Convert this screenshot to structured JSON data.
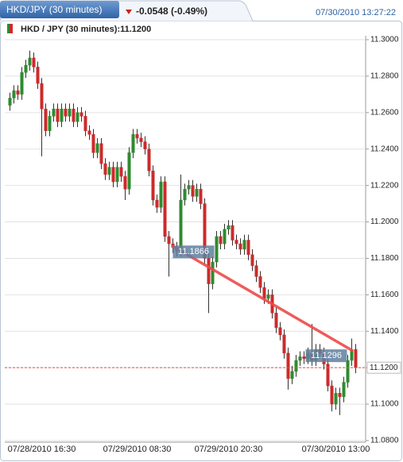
{
  "header": {
    "tab": "HKD/JPY (30 minutes)",
    "change": "-0.0548 (-0.49%)",
    "timestamp": "07/30/2010 13:27:22"
  },
  "chart_data": {
    "type": "candlestick",
    "legend": "HKD / JPY (30 minutes):11.1200",
    "up_color": "#2e8b2e",
    "down_color": "#cc2a2a",
    "categories": [
      null,
      null,
      null,
      null,
      null,
      null,
      null,
      null,
      "07/28/2010 16:30",
      null,
      null,
      null,
      null,
      null,
      null,
      null,
      null,
      null,
      null,
      null,
      null,
      null,
      null,
      null,
      null,
      null,
      null,
      null,
      null,
      null,
      null,
      null,
      "07/29/2010 08:30",
      null,
      null,
      null,
      null,
      null,
      null,
      null,
      null,
      null,
      null,
      null,
      null,
      null,
      null,
      null,
      null,
      null,
      null,
      null,
      null,
      null,
      null,
      "07/29/2010 20:30",
      null,
      null,
      null,
      null,
      null,
      null,
      null,
      null,
      null,
      null,
      null,
      null,
      null,
      null,
      null,
      null,
      null,
      null,
      null,
      null,
      null,
      null,
      null,
      null,
      null,
      null,
      "07/30/2010 13:00",
      null,
      null,
      null,
      null,
      null
    ],
    "open": [
      11.264,
      11.268,
      11.272,
      11.27,
      11.282,
      11.286,
      11.29,
      11.285,
      11.276,
      11.262,
      11.25,
      11.258,
      11.262,
      11.255,
      11.262,
      11.258,
      11.262,
      11.255,
      11.26,
      11.258,
      11.25,
      11.248,
      11.238,
      11.243,
      11.232,
      11.226,
      11.23,
      11.222,
      11.23,
      11.225,
      11.218,
      11.238,
      11.248,
      11.246,
      11.244,
      11.24,
      11.228,
      11.212,
      11.208,
      11.222,
      11.192,
      11.188,
      11.186,
      11.184,
      11.212,
      11.218,
      11.22,
      11.214,
      11.218,
      11.21,
      11.18,
      11.166,
      11.178,
      11.192,
      11.188,
      11.196,
      11.198,
      11.19,
      11.188,
      11.185,
      11.19,
      11.182,
      11.176,
      11.17,
      11.164,
      11.158,
      11.16,
      11.15,
      11.142,
      11.138,
      11.128,
      11.114,
      11.118,
      11.124,
      11.126,
      11.125,
      11.128,
      11.124,
      11.13,
      11.128,
      11.122,
      11.11,
      11.1,
      11.106,
      11.104,
      11.112,
      11.124,
      11.13
    ],
    "high": [
      11.271,
      11.275,
      11.275,
      11.285,
      11.289,
      11.294,
      11.293,
      11.288,
      11.279,
      11.265,
      11.261,
      11.265,
      11.265,
      11.265,
      11.265,
      11.265,
      11.265,
      11.263,
      11.263,
      11.261,
      11.253,
      11.251,
      11.246,
      11.246,
      11.235,
      11.233,
      11.233,
      11.233,
      11.233,
      11.228,
      11.241,
      11.251,
      11.251,
      11.249,
      11.247,
      11.243,
      11.231,
      11.215,
      11.225,
      11.225,
      11.195,
      11.191,
      11.189,
      11.226,
      11.221,
      11.223,
      11.223,
      11.221,
      11.221,
      11.213,
      11.183,
      11.181,
      11.195,
      11.195,
      11.199,
      11.201,
      11.201,
      11.193,
      11.191,
      11.193,
      11.193,
      11.185,
      11.179,
      11.173,
      11.167,
      11.163,
      11.163,
      11.153,
      11.145,
      11.141,
      11.131,
      11.121,
      11.127,
      11.129,
      11.129,
      11.131,
      11.144,
      11.133,
      11.133,
      11.131,
      11.125,
      11.113,
      11.109,
      11.109,
      11.115,
      11.127,
      11.136,
      11.133
    ],
    "low": [
      11.261,
      11.265,
      11.267,
      11.267,
      11.279,
      11.283,
      11.282,
      11.273,
      11.236,
      11.247,
      11.247,
      11.255,
      11.252,
      11.252,
      11.255,
      11.255,
      11.252,
      11.252,
      11.255,
      11.247,
      11.245,
      11.235,
      11.235,
      11.229,
      11.223,
      11.223,
      11.219,
      11.219,
      11.222,
      11.212,
      11.215,
      11.235,
      11.243,
      11.241,
      11.237,
      11.225,
      11.209,
      11.205,
      11.205,
      11.189,
      11.17,
      11.183,
      11.181,
      11.181,
      11.209,
      11.215,
      11.211,
      11.211,
      11.207,
      11.177,
      11.15,
      11.163,
      11.175,
      11.185,
      11.185,
      11.193,
      11.187,
      11.185,
      11.182,
      11.182,
      11.179,
      11.173,
      11.167,
      11.161,
      11.155,
      11.155,
      11.147,
      11.139,
      11.135,
      11.125,
      11.108,
      11.111,
      11.115,
      11.121,
      11.122,
      11.122,
      11.121,
      11.121,
      11.125,
      11.119,
      11.107,
      11.096,
      11.097,
      11.094,
      11.101,
      11.109,
      11.121,
      11.117
    ],
    "close": [
      11.268,
      11.272,
      11.27,
      11.282,
      11.286,
      11.29,
      11.285,
      11.276,
      11.262,
      11.25,
      11.258,
      11.262,
      11.255,
      11.262,
      11.258,
      11.262,
      11.255,
      11.26,
      11.258,
      11.25,
      11.248,
      11.238,
      11.243,
      11.232,
      11.226,
      11.23,
      11.222,
      11.23,
      11.225,
      11.218,
      11.238,
      11.248,
      11.246,
      11.244,
      11.24,
      11.228,
      11.212,
      11.208,
      11.222,
      11.192,
      11.188,
      11.186,
      11.184,
      11.212,
      11.218,
      11.22,
      11.214,
      11.218,
      11.21,
      11.18,
      11.166,
      11.178,
      11.192,
      11.188,
      11.196,
      11.198,
      11.19,
      11.188,
      11.185,
      11.19,
      11.182,
      11.176,
      11.17,
      11.164,
      11.158,
      11.16,
      11.15,
      11.142,
      11.138,
      11.128,
      11.114,
      11.118,
      11.124,
      11.126,
      11.125,
      11.128,
      11.124,
      11.13,
      11.128,
      11.122,
      11.11,
      11.1,
      11.106,
      11.104,
      11.112,
      11.124,
      11.13,
      11.12
    ],
    "ylim": [
      11.08,
      11.3
    ],
    "yticks": [
      {
        "value": 11.08,
        "label": "11.0800"
      },
      {
        "value": 11.1,
        "label": "11.1000"
      },
      {
        "value": 11.12,
        "label": "11.1200"
      },
      {
        "value": 11.14,
        "label": "11.1400"
      },
      {
        "value": 11.16,
        "label": "11.1600"
      },
      {
        "value": 11.18,
        "label": "11.1800"
      },
      {
        "value": 11.2,
        "label": "11.2000"
      },
      {
        "value": 11.22,
        "label": "11.2200"
      },
      {
        "value": 11.24,
        "label": "11.2400"
      },
      {
        "value": 11.26,
        "label": "11.2600"
      },
      {
        "value": 11.28,
        "label": "11.2800"
      },
      {
        "value": 11.3,
        "label": "11.3000"
      }
    ],
    "grid": true,
    "last_price": {
      "value": 11.12,
      "label": "11.1200",
      "color": "#e05050"
    },
    "trendline": {
      "values": [
        11.1866,
        11.1296
      ],
      "color": "#ee4a4a"
    }
  }
}
